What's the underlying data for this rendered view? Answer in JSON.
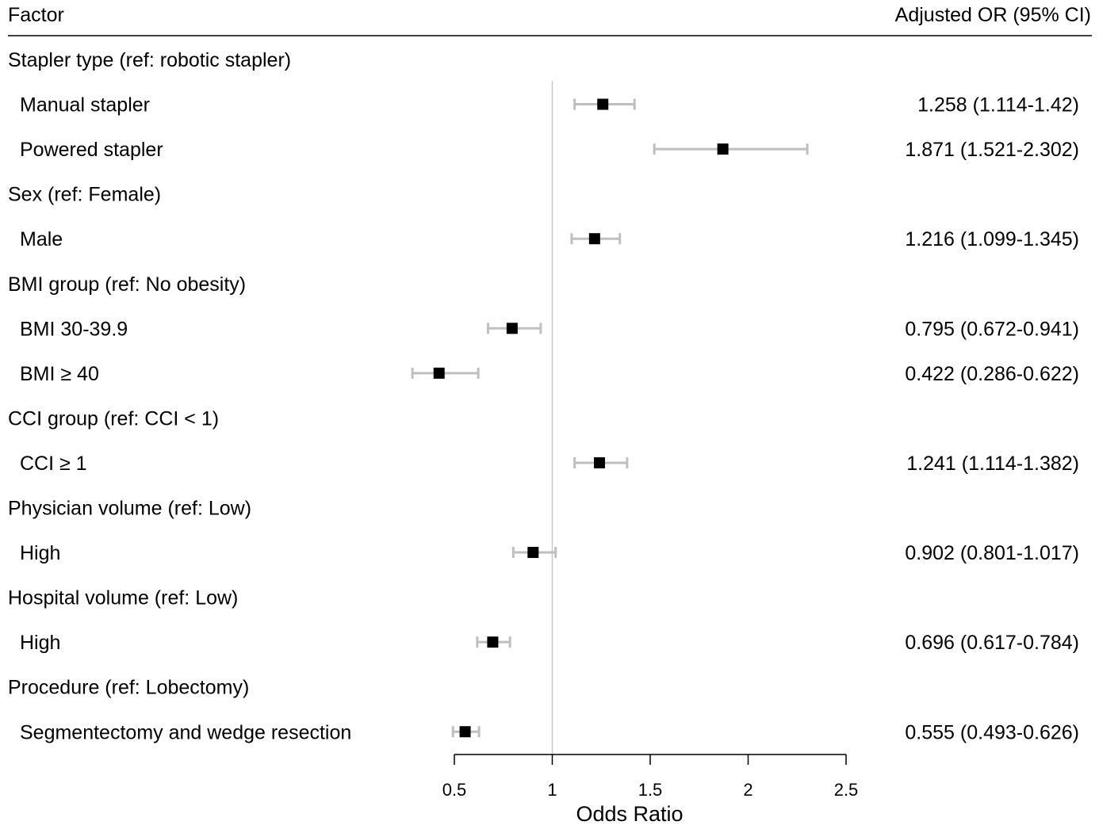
{
  "header": {
    "factor_label": "Factor",
    "or_label": "Adjusted OR (95% CI)"
  },
  "chart_data": {
    "type": "forest",
    "xlabel": "Odds Ratio",
    "xlim": [
      0.5,
      2.5
    ],
    "xticks": [
      0.5,
      1,
      1.5,
      2,
      2.5
    ],
    "xtick_labels": [
      "0.5",
      "1",
      "1.5",
      "2",
      "2.5"
    ],
    "reference_line": 1,
    "grid": false,
    "rows": [
      {
        "kind": "group",
        "label": "Stapler type (ref: robotic stapler)"
      },
      {
        "kind": "item",
        "label": "Manual stapler",
        "or": 1.258,
        "lower": 1.114,
        "upper": 1.42,
        "text": "1.258 (1.114-1.42)"
      },
      {
        "kind": "item",
        "label": "Powered stapler",
        "or": 1.871,
        "lower": 1.521,
        "upper": 2.302,
        "text": "1.871 (1.521-2.302)"
      },
      {
        "kind": "group",
        "label": "Sex (ref: Female)"
      },
      {
        "kind": "item",
        "label": "Male",
        "or": 1.216,
        "lower": 1.099,
        "upper": 1.345,
        "text": "1.216 (1.099-1.345)"
      },
      {
        "kind": "group",
        "label": "BMI group (ref: No obesity)"
      },
      {
        "kind": "item",
        "label": "BMI 30-39.9",
        "or": 0.795,
        "lower": 0.672,
        "upper": 0.941,
        "text": "0.795 (0.672-0.941)"
      },
      {
        "kind": "item",
        "label": "BMI ≥ 40",
        "or": 0.422,
        "lower": 0.286,
        "upper": 0.622,
        "text": "0.422 (0.286-0.622)"
      },
      {
        "kind": "group",
        "label": "CCI group (ref: CCI < 1)"
      },
      {
        "kind": "item",
        "label": "CCI ≥ 1",
        "or": 1.241,
        "lower": 1.114,
        "upper": 1.382,
        "text": "1.241 (1.114-1.382)"
      },
      {
        "kind": "group",
        "label": "Physician volume (ref: Low)"
      },
      {
        "kind": "item",
        "label": "High",
        "or": 0.902,
        "lower": 0.801,
        "upper": 1.017,
        "text": "0.902 (0.801-1.017)"
      },
      {
        "kind": "group",
        "label": "Hospital volume (ref: Low)"
      },
      {
        "kind": "item",
        "label": "High",
        "or": 0.696,
        "lower": 0.617,
        "upper": 0.784,
        "text": "0.696 (0.617-0.784)"
      },
      {
        "kind": "group",
        "label": "Procedure (ref: Lobectomy)"
      },
      {
        "kind": "item",
        "label": "Segmentectomy and wedge resection",
        "or": 0.555,
        "lower": 0.493,
        "upper": 0.626,
        "text": "0.555 (0.493-0.626)"
      }
    ],
    "colors": {
      "ci_line": "#bfbfbf",
      "point": "#000000",
      "reference_line": "#c8c8c8",
      "axis": "#000000"
    }
  }
}
